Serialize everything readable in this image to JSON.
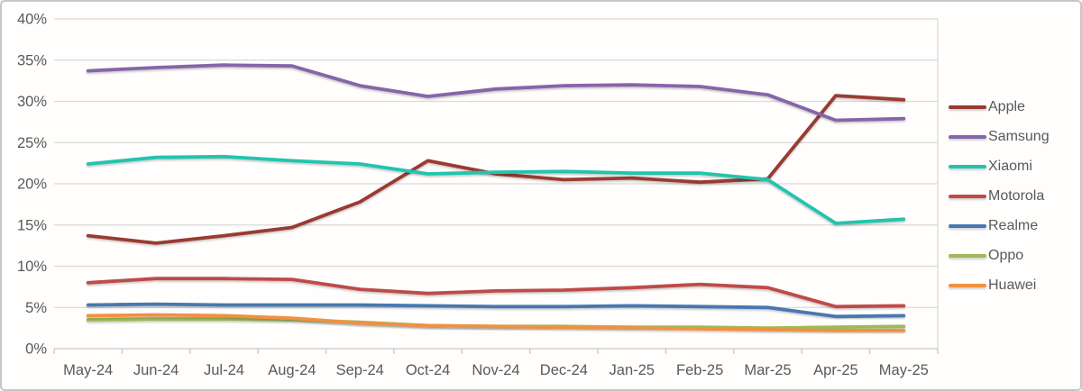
{
  "chart_data": {
    "type": "line",
    "title": "",
    "xlabel": "",
    "ylabel": "",
    "categories": [
      "May-24",
      "Jun-24",
      "Jul-24",
      "Aug-24",
      "Sep-24",
      "Oct-24",
      "Nov-24",
      "Dec-24",
      "Jan-25",
      "Feb-25",
      "Mar-25",
      "Apr-25",
      "May-25"
    ],
    "series": [
      {
        "name": "Apple",
        "color": "#9a3b33",
        "values": [
          13.7,
          12.8,
          13.7,
          14.7,
          17.8,
          22.8,
          21.2,
          20.5,
          20.7,
          20.2,
          20.6,
          30.7,
          30.2
        ]
      },
      {
        "name": "Samsung",
        "color": "#8566a8",
        "values": [
          33.7,
          34.1,
          34.4,
          34.3,
          31.9,
          30.6,
          31.5,
          31.9,
          32.0,
          31.8,
          30.8,
          27.7,
          27.9
        ]
      },
      {
        "name": "Xiaomi",
        "color": "#20c4ae",
        "values": [
          22.4,
          23.2,
          23.3,
          22.8,
          22.4,
          21.2,
          21.4,
          21.5,
          21.3,
          21.3,
          20.5,
          15.2,
          15.7
        ]
      },
      {
        "name": "Motorola",
        "color": "#be4b48",
        "values": [
          8.0,
          8.5,
          8.5,
          8.4,
          7.2,
          6.7,
          7.0,
          7.1,
          7.4,
          7.8,
          7.4,
          5.1,
          5.2
        ]
      },
      {
        "name": "Realme",
        "color": "#4678b0",
        "values": [
          5.3,
          5.4,
          5.3,
          5.3,
          5.3,
          5.2,
          5.1,
          5.1,
          5.2,
          5.1,
          5.0,
          3.9,
          4.0
        ]
      },
      {
        "name": "Oppo",
        "color": "#9eba58",
        "values": [
          3.5,
          3.6,
          3.6,
          3.5,
          3.2,
          2.8,
          2.7,
          2.7,
          2.6,
          2.6,
          2.5,
          2.6,
          2.7
        ]
      },
      {
        "name": "Huawei",
        "color": "#f0913f",
        "values": [
          4.0,
          4.1,
          4.0,
          3.7,
          3.1,
          2.8,
          2.7,
          2.6,
          2.5,
          2.4,
          2.3,
          2.2,
          2.2
        ]
      }
    ],
    "ylim": [
      0,
      40
    ],
    "ytick_values": [
      0,
      5,
      10,
      15,
      20,
      25,
      30,
      35,
      40
    ],
    "ytick_labels": [
      "0%",
      "5%",
      "10%",
      "15%",
      "20%",
      "25%",
      "30%",
      "35%",
      "40%"
    ],
    "grid": "horizontal",
    "legend_position": "right",
    "colors": {
      "gridline": "#d9d9d9",
      "axis_line": "#c6c6c6",
      "tick": "#c6c6c6",
      "plot_right_border": "#d9d9d9",
      "label_text": "#595959",
      "card_border": "#c4c6c8",
      "background": "#fffefd"
    }
  }
}
